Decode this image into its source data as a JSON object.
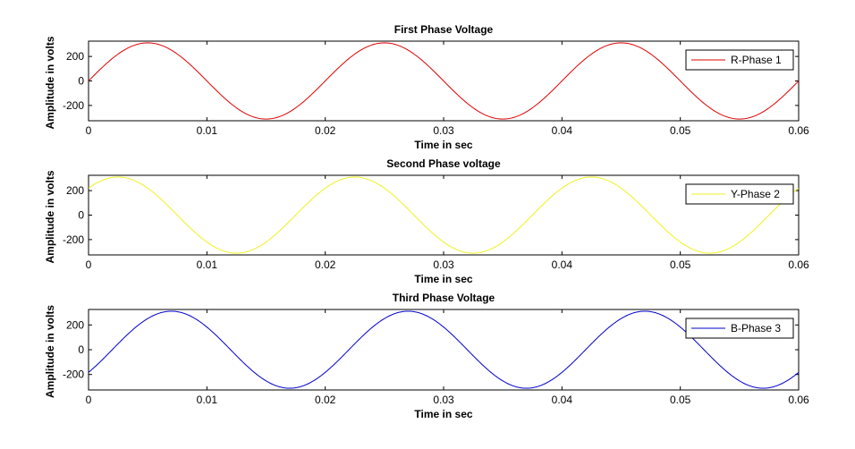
{
  "chart_data": [
    {
      "type": "line",
      "title": "First Phase Voltage",
      "xlabel": "Time in sec",
      "ylabel": "Amplitude in volts",
      "xlim": [
        0,
        0.06
      ],
      "ylim": [
        -325,
        325
      ],
      "xticks": [
        0,
        0.01,
        0.02,
        0.03,
        0.04,
        0.05,
        0.06
      ],
      "xtick_labels": [
        "0",
        "0.01",
        "0.02",
        "0.03",
        "0.04",
        "0.05",
        "0.06"
      ],
      "yticks": [
        200,
        0,
        -200
      ],
      "ytick_labels": [
        "200",
        "0",
        "-200"
      ],
      "grid": false,
      "legend_position": "top-right",
      "series": [
        {
          "name": "R-Phase 1",
          "color": "#e00000",
          "amplitude": 311,
          "frequency_hz": 50,
          "phase_deg": 0
        }
      ]
    },
    {
      "type": "line",
      "title": "Second Phase voltage",
      "xlabel": "Time in sec",
      "ylabel": "Amplitude in volts",
      "xlim": [
        0,
        0.06
      ],
      "ylim": [
        -325,
        325
      ],
      "xticks": [
        0,
        0.01,
        0.02,
        0.03,
        0.04,
        0.05,
        0.06
      ],
      "xtick_labels": [
        "0",
        "0.01",
        "0.02",
        "0.03",
        "0.04",
        "0.05",
        "0.06"
      ],
      "yticks": [
        200,
        0,
        -200
      ],
      "ytick_labels": [
        "200",
        "0",
        "-200"
      ],
      "grid": false,
      "legend_position": "top-right",
      "series": [
        {
          "name": "Y-Phase 2",
          "color": "#f0f020",
          "amplitude": 311,
          "frequency_hz": 50,
          "phase_deg": 45
        }
      ]
    },
    {
      "type": "line",
      "title": "Third Phase Voltage",
      "xlabel": "Time in sec",
      "ylabel": "Amplitude in volts",
      "xlim": [
        0,
        0.06
      ],
      "ylim": [
        -325,
        325
      ],
      "xticks": [
        0,
        0.01,
        0.02,
        0.03,
        0.04,
        0.05,
        0.06
      ],
      "xtick_labels": [
        "0",
        "0.01",
        "0.02",
        "0.03",
        "0.04",
        "0.05",
        "0.06"
      ],
      "yticks": [
        200,
        0,
        -200
      ],
      "ytick_labels": [
        "200",
        "0",
        "-200"
      ],
      "grid": false,
      "legend_position": "top-right",
      "series": [
        {
          "name": "B-Phase 3",
          "color": "#0000cc",
          "amplitude": 311,
          "frequency_hz": 50,
          "phase_deg": -36
        }
      ]
    }
  ]
}
